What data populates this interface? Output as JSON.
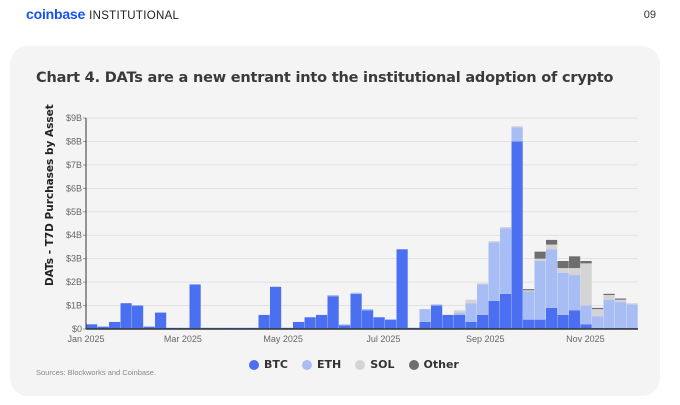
{
  "header": {
    "brand": "coinbase",
    "brand_sub": "INSTITUTIONAL",
    "page_number": "09"
  },
  "source_note": "Sources: Blockworks and Coinbase.",
  "colors": {
    "BTC": "#4a6ff0",
    "ETH": "#a9bdf5",
    "SOL": "#d4d4d4",
    "Other": "#6e6e6e",
    "grid": "#e2e2e2",
    "axis": "#333333"
  },
  "chart_data": {
    "type": "bar",
    "stacked": true,
    "title": "Chart 4. DATs are a new entrant into the institutional adoption of crypto",
    "xlabel": "",
    "ylabel": "DATs - T7D Purchases by Asset",
    "ylim": [
      0,
      9
    ],
    "y_unit": "$B",
    "yticks": [
      "$0",
      "$1B",
      "$2B",
      "$3B",
      "$4B",
      "$5B",
      "$6B",
      "$7B",
      "$8B",
      "$9B"
    ],
    "xticks": [
      {
        "label": "Jan 2025",
        "day": 0
      },
      {
        "label": "Mar 2025",
        "day": 59
      },
      {
        "label": "May 2025",
        "day": 120
      },
      {
        "label": "Jul 2025",
        "day": 181
      },
      {
        "label": "Sep 2025",
        "day": 243
      },
      {
        "label": "Nov 2025",
        "day": 304
      }
    ],
    "x_range_days": [
      0,
      336
    ],
    "grid": true,
    "legend": {
      "position": "bottom",
      "entries": [
        "BTC",
        "ETH",
        "SOL",
        "Other"
      ]
    },
    "period_days": 7,
    "start_date": "2025-01-01",
    "series": [
      {
        "name": "BTC",
        "values": [
          0.2,
          0.1,
          0.3,
          1.1,
          1.0,
          0.1,
          0.7,
          0.05,
          0.05,
          1.9,
          0.05,
          0.05,
          0.05,
          0.05,
          0.05,
          0.6,
          1.8,
          0.05,
          0.3,
          0.5,
          0.6,
          1.4,
          0.15,
          1.5,
          0.8,
          0.5,
          0.4,
          3.4,
          0.05,
          0.3,
          1.0,
          0.6,
          0.6,
          0.3,
          0.6,
          1.2,
          1.5,
          8.0,
          0.4,
          0.4,
          0.9,
          0.6,
          0.8,
          0.2,
          0.05,
          0.05,
          0.05,
          0.05
        ]
      },
      {
        "name": "ETH",
        "values": [
          0,
          0,
          0,
          0,
          0,
          0,
          0,
          0,
          0,
          0,
          0,
          0,
          0,
          0,
          0,
          0,
          0,
          0,
          0,
          0,
          0,
          0.05,
          0.05,
          0.05,
          0.05,
          0,
          0,
          0,
          0,
          0.55,
          0.05,
          0,
          0.1,
          0.8,
          1.3,
          2.5,
          2.8,
          0.6,
          1.2,
          2.5,
          2.5,
          1.8,
          1.5,
          0.8,
          0.5,
          1.2,
          1.1,
          1.0
        ]
      },
      {
        "name": "SOL",
        "values": [
          0,
          0,
          0,
          0,
          0,
          0,
          0,
          0,
          0,
          0,
          0,
          0,
          0,
          0,
          0,
          0,
          0,
          0,
          0,
          0,
          0,
          0,
          0,
          0,
          0,
          0,
          0,
          0,
          0,
          0,
          0,
          0,
          0.1,
          0.15,
          0.05,
          0.05,
          0.05,
          0.05,
          0.05,
          0.1,
          0.2,
          0.2,
          0.3,
          1.8,
          0.3,
          0.2,
          0.1,
          0.05
        ]
      },
      {
        "name": "Other",
        "values": [
          0,
          0,
          0,
          0,
          0,
          0,
          0,
          0,
          0,
          0,
          0,
          0,
          0,
          0,
          0,
          0,
          0,
          0,
          0,
          0,
          0,
          0,
          0,
          0,
          0,
          0,
          0,
          0,
          0,
          0,
          0,
          0,
          0,
          0,
          0,
          0,
          0,
          0,
          0.05,
          0.3,
          0.2,
          0.3,
          0.5,
          0.1,
          0.05,
          0.05,
          0.05,
          0
        ]
      }
    ]
  }
}
